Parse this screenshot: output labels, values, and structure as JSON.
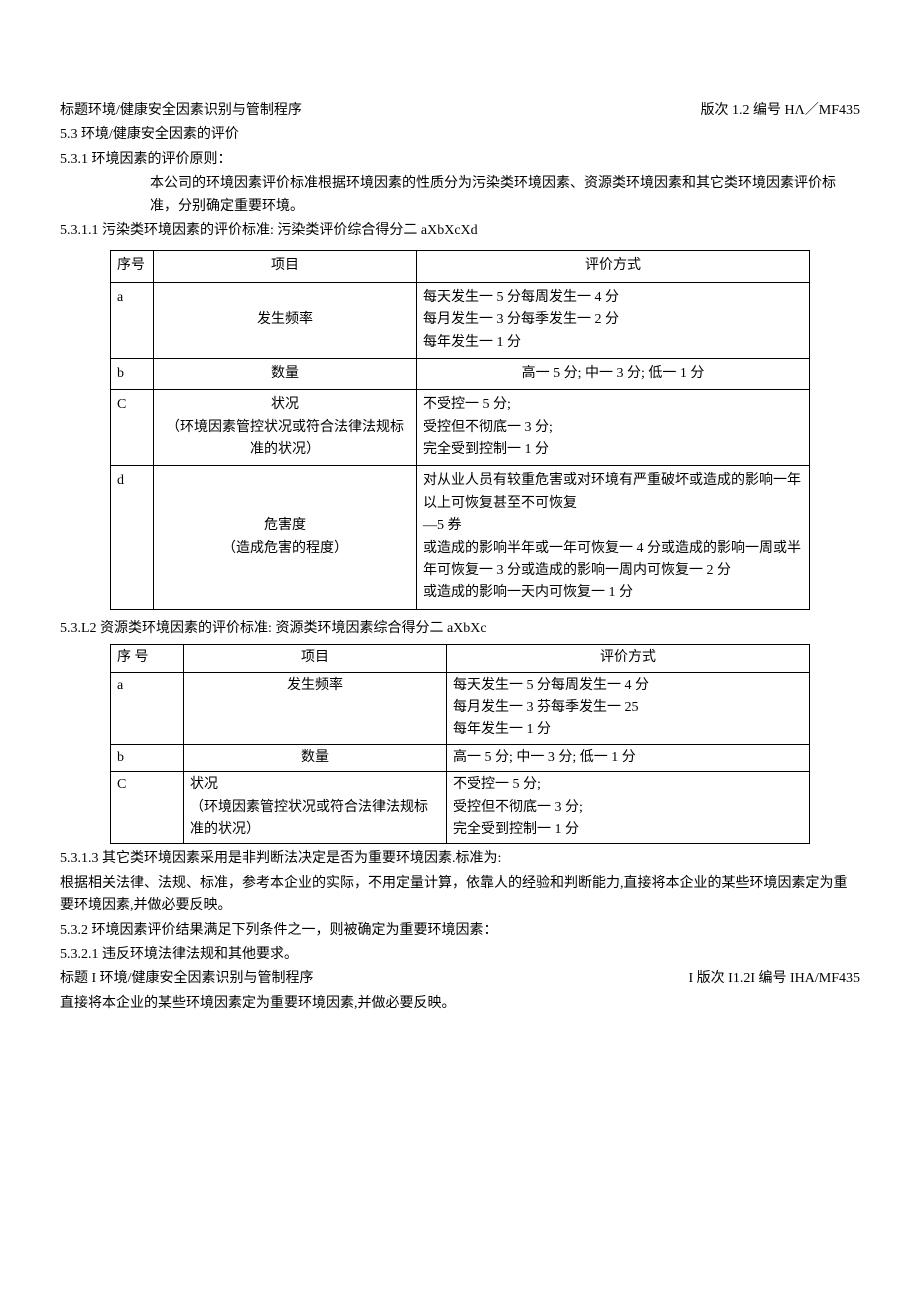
{
  "header": {
    "title_left": "标题环境/健康安全因素识别与管制程序",
    "title_right": "版次 1.2 编号 HΛ／MF435"
  },
  "sections": {
    "s53": "5.3 环境/健康安全因素的评价",
    "s531": "5.3.1 环境因素的评价原则：",
    "s531_body": "本公司的环境因素评价标准根据环境因素的性质分为污染类环境因素、资源类环境因素和其它类环境因素评价标准，分别确定重要环境。",
    "s5311": "5.3.1.1 污染类环境因素的评价标准: 污染类评价综合得分二 aXbXcXd"
  },
  "table1": {
    "header": {
      "seq": "序号",
      "item": "项目",
      "method": "评价方式"
    },
    "rows": [
      {
        "seq": "a",
        "item": "发生频率",
        "method": "每天发生一 5 分每周发生一 4 分\n每月发生一 3 分每季发生一 2 分\n每年发生一 1 分"
      },
      {
        "seq": "b",
        "item": "数量",
        "method": "高一 5 分;  中一 3 分;  低一 1 分"
      },
      {
        "seq": "C",
        "item": "状况\n（环境因素管控状况或符合法律法规标准的状况）",
        "method": "不受控一 5 分;\n受控但不彻底一 3 分;\n完全受到控制一 1 分"
      },
      {
        "seq": "d",
        "item": "危害度\n（造成危害的程度）",
        "method": "对从业人员有较重危害或对环境有严重破坏或造成的影响一年以上可恢复甚至不可恢复\n—5 券\n或造成的影响半年或一年可恢复一 4 分或造成的影响一周或半年可恢复一 3 分或造成的影响一周内可恢复一 2 分\n或造成的影响一天内可恢复一 1 分"
      }
    ]
  },
  "s531L2": "5.3.L2 资源类环境因素的评价标准: 资源类环境因素综合得分二 aXbXc",
  "table2": {
    "header": {
      "seq": "序 号",
      "item": "项目",
      "method": "评价方式"
    },
    "rows": [
      {
        "seq": "a",
        "item": "发生频率",
        "method": "每天发生一 5 分每周发生一 4 分\n每月发生一 3 芬每季发生一 25\n每年发生一 1 分"
      },
      {
        "seq": "b",
        "item": "数量",
        "method": "高一 5 分;  中一 3 分;  低一 1 分"
      },
      {
        "seq": "C",
        "item": "状况\n（环境因素管控状况或符合法律法规标准的状况）",
        "method": "不受控一 5 分;\n受控但不彻底一 3 分;\n完全受到控制一 1 分"
      }
    ]
  },
  "tail": {
    "s5313": "5.3.1.3 其它类环境因素采用是非判断法决定是否为重要环境因素.标准为:",
    "s5313_body": "根据相关法律、法规、标准，参考本企业的实际，不用定量计算，依靠人的经验和判断能力,直接将本企业的某些环境因素定为重要环境因素,并做必要反映。",
    "s532": "5.3.2 环境因素评价结果满足下列条件之一，则被确定为重要环境因素：",
    "s5321": "5.3.2.1 违反环境法律法规和其他要求。",
    "footer_left": "标题 I 环境/健康安全因素识别与管制程序",
    "footer_right": "I 版次 I1.2I 编号 IHA/MF435",
    "last": "直接将本企业的某些环境因素定为重要环境因素,并做必要反映。"
  }
}
